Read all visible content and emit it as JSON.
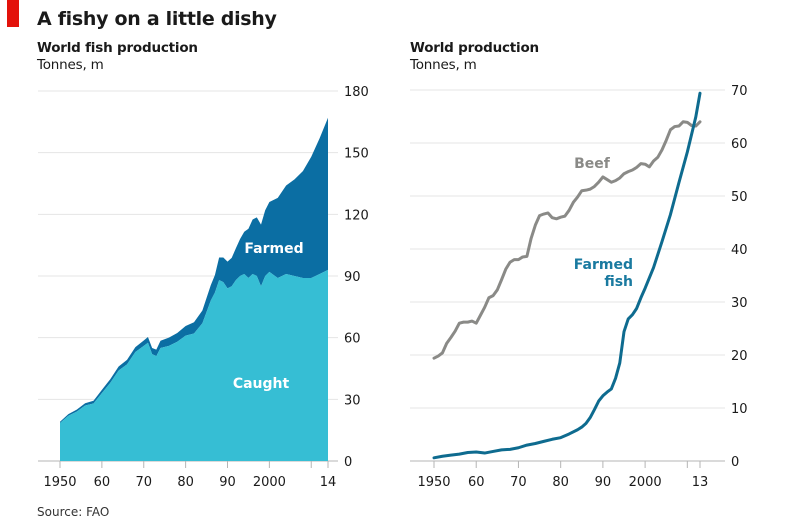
{
  "title": "A fishy on a little dishy",
  "source": "Source: FAO",
  "colors": {
    "brand_red": "#e3120b",
    "farmed_area": "#0b6ea3",
    "caught_area": "#36bed4",
    "beef_line": "#8a8a87",
    "farmed_fish_line": "#0e6b8f",
    "grid": "#e4e4e4"
  },
  "chart_data": [
    {
      "type": "area",
      "stacked": true,
      "title": "World fish production",
      "ylabel": "Tonnes, m",
      "xlabel": "",
      "xlim": [
        1950,
        2014
      ],
      "ylim": [
        0,
        180
      ],
      "yticks": [
        0,
        30,
        60,
        90,
        120,
        150,
        180
      ],
      "xticks": [
        1950,
        1960,
        1970,
        1980,
        1990,
        2000,
        2010,
        2014
      ],
      "xtick_labels": [
        "1950",
        "60",
        "70",
        "80",
        "90",
        "2000",
        "",
        "14"
      ],
      "grid": true,
      "axis_side": "right",
      "x": [
        1950,
        1952,
        1954,
        1956,
        1958,
        1960,
        1962,
        1964,
        1966,
        1968,
        1970,
        1971,
        1972,
        1973,
        1974,
        1976,
        1978,
        1980,
        1982,
        1984,
        1986,
        1987,
        1988,
        1989,
        1990,
        1991,
        1992,
        1993,
        1994,
        1995,
        1996,
        1997,
        1998,
        1999,
        2000,
        2002,
        2004,
        2006,
        2008,
        2010,
        2012,
        2014
      ],
      "series": [
        {
          "name": "Caught",
          "label": "Caught",
          "values": [
            18.5,
            22,
            24,
            27,
            28,
            33,
            38,
            44,
            47,
            53,
            56,
            57.5,
            52,
            51,
            55,
            56,
            58,
            61,
            62,
            67,
            78,
            82,
            88,
            87,
            84,
            85,
            88,
            90,
            91,
            89,
            91,
            90,
            85,
            90,
            92,
            89,
            91,
            90,
            89,
            89,
            91,
            93
          ]
        },
        {
          "name": "Farmed",
          "label": "Farmed",
          "values": [
            0.6,
            0.8,
            1,
            1.1,
            1.3,
            1.6,
            1.8,
            2,
            2.2,
            2.4,
            2.6,
            2.8,
            3,
            3.2,
            3.5,
            4,
            4.3,
            4.7,
            5.5,
            6.2,
            7.5,
            8.5,
            11,
            12,
            13,
            13.8,
            15.5,
            18,
            20.5,
            24,
            26.5,
            28.5,
            30,
            32,
            34,
            39,
            43,
            47,
            52,
            59,
            66,
            74
          ]
        }
      ]
    },
    {
      "type": "line",
      "title": "World production",
      "ylabel": "Tonnes, m",
      "xlabel": "",
      "xlim": [
        1950,
        2013
      ],
      "ylim": [
        0,
        70
      ],
      "yticks": [
        0,
        10,
        20,
        30,
        40,
        50,
        60,
        70
      ],
      "xticks": [
        1950,
        1960,
        1970,
        1980,
        1990,
        2000,
        2010,
        2013
      ],
      "xtick_labels": [
        "1950",
        "60",
        "70",
        "80",
        "90",
        "2000",
        "",
        "13"
      ],
      "grid": true,
      "axis_side": "right",
      "series": [
        {
          "name": "Beef",
          "label": "Beef",
          "x": [
            1950,
            1951,
            1952,
            1953,
            1954,
            1955,
            1956,
            1957,
            1958,
            1959,
            1960,
            1961,
            1962,
            1963,
            1964,
            1965,
            1966,
            1967,
            1968,
            1969,
            1970,
            1971,
            1972,
            1973,
            1974,
            1975,
            1976,
            1977,
            1978,
            1979,
            1980,
            1981,
            1982,
            1983,
            1984,
            1985,
            1986,
            1987,
            1988,
            1989,
            1990,
            1991,
            1992,
            1993,
            1994,
            1995,
            1996,
            1997,
            1998,
            1999,
            2000,
            2001,
            2002,
            2003,
            2004,
            2005,
            2006,
            2007,
            2008,
            2009,
            2010,
            2011,
            2012,
            2013
          ],
          "values": [
            19.4,
            19.8,
            20.4,
            22.2,
            23.3,
            24.5,
            26,
            26.2,
            26.2,
            26.4,
            26,
            27.5,
            29,
            30.8,
            31.2,
            32.3,
            34.2,
            36.2,
            37.5,
            38,
            38,
            38.5,
            38.6,
            42,
            44.5,
            46.3,
            46.6,
            46.8,
            45.9,
            45.7,
            46,
            46.2,
            47.3,
            48.8,
            49.8,
            51,
            51.1,
            51.3,
            51.8,
            52.6,
            53.6,
            53.1,
            52.6,
            52.9,
            53.4,
            54.2,
            54.6,
            54.9,
            55.4,
            56.1,
            56,
            55.5,
            56.6,
            57.3,
            58.7,
            60.5,
            62.5,
            63.1,
            63.2,
            64,
            63.9,
            63.3,
            63.2,
            64
          ]
        },
        {
          "name": "Farmed fish",
          "label": "Farmed fish",
          "x": [
            1950,
            1952,
            1954,
            1956,
            1958,
            1960,
            1962,
            1964,
            1966,
            1968,
            1970,
            1972,
            1974,
            1976,
            1978,
            1980,
            1982,
            1984,
            1985,
            1986,
            1987,
            1988,
            1989,
            1990,
            1991,
            1992,
            1993,
            1994,
            1995,
            1996,
            1997,
            1998,
            1999,
            2000,
            2002,
            2004,
            2006,
            2008,
            2010,
            2012,
            2013
          ],
          "values": [
            0.6,
            0.9,
            1.1,
            1.3,
            1.6,
            1.7,
            1.5,
            1.8,
            2.1,
            2.2,
            2.5,
            3,
            3.3,
            3.7,
            4.1,
            4.4,
            5.1,
            5.9,
            6.4,
            7.1,
            8.2,
            9.7,
            11.3,
            12.3,
            13,
            13.6,
            15.6,
            18.5,
            24.4,
            26.8,
            27.6,
            28.8,
            30.8,
            32.6,
            36.5,
            41.4,
            46.5,
            52.5,
            58.3,
            64.9,
            69.4
          ]
        }
      ]
    }
  ]
}
